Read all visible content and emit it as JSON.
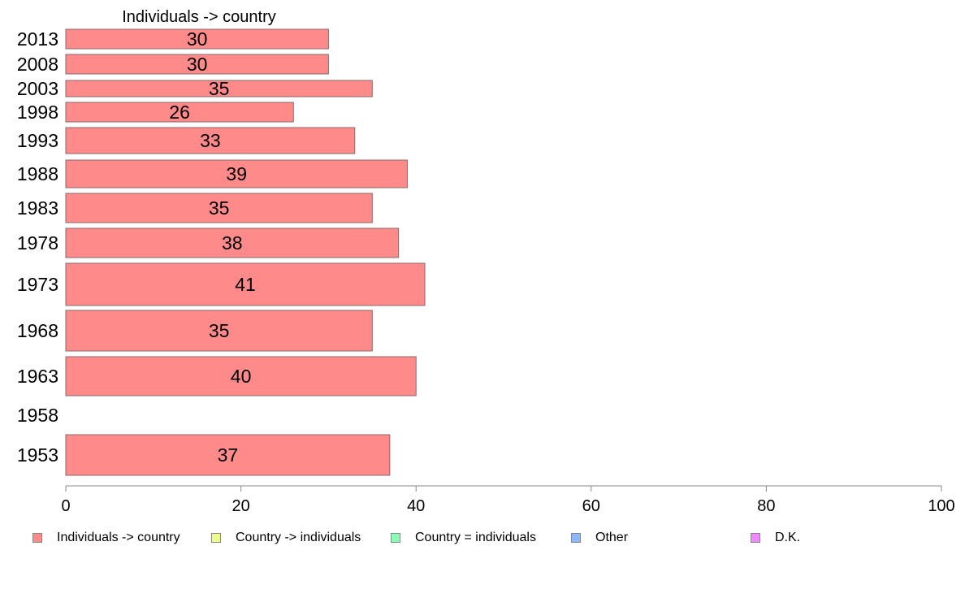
{
  "chart_data": {
    "type": "bar",
    "orientation": "horizontal",
    "title": "Individuals -> country",
    "xlim": [
      0,
      100
    ],
    "xticks": [
      0,
      20,
      40,
      60,
      80,
      100
    ],
    "grid": false,
    "legend_position": "bottom",
    "categories": [
      "2013",
      "2008",
      "2003",
      "1998",
      "1993",
      "1988",
      "1983",
      "1978",
      "1973",
      "1968",
      "1963",
      "1958",
      "1953"
    ],
    "series": [
      {
        "name": "Individuals -> country",
        "color": "#ff8a8a",
        "values": [
          30,
          30,
          35,
          26,
          33,
          39,
          35,
          38,
          41,
          35,
          40,
          null,
          37
        ],
        "labels": [
          "30",
          "30",
          "35",
          "26",
          "33",
          "39",
          "35",
          "38",
          "41",
          "35",
          "40",
          "",
          "37"
        ]
      }
    ],
    "legend": [
      {
        "name": "Individuals -> country",
        "color": "#ff8a8a"
      },
      {
        "name": "Country -> individuals",
        "color": "#f0ff8a"
      },
      {
        "name": "Country = individuals",
        "color": "#8affb8"
      },
      {
        "name": "Other",
        "color": "#8ab8ff"
      },
      {
        "name": "D.K.",
        "color": "#f08aff"
      }
    ]
  }
}
